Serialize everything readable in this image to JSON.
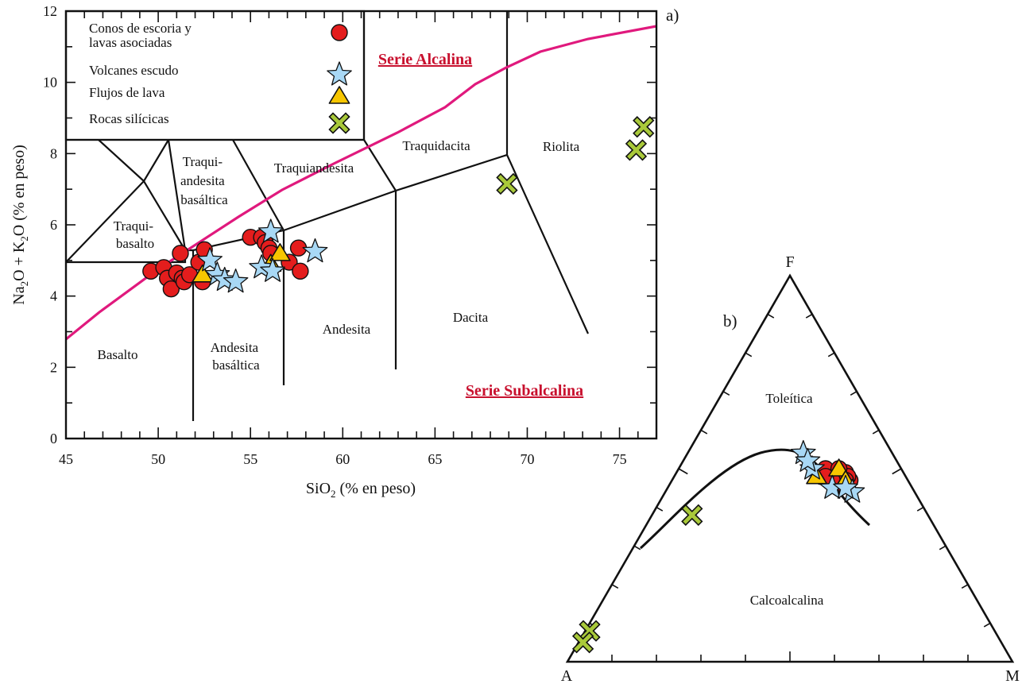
{
  "colors": {
    "cones": "#e41d1d",
    "shield": "#a8d8f5",
    "flows": "#f7c600",
    "silicic": "#a9c93a",
    "alkaline_divider": "#e0197d",
    "series_labels": "#c8102e"
  },
  "tas": {
    "panel_label": "a)",
    "x_title_parts": [
      "SiO",
      "2",
      " (% en peso)"
    ],
    "y_title_parts": [
      "Na",
      "2",
      "O + K",
      "2",
      "O (% en peso)"
    ],
    "x_ticks": [
      "45",
      "50",
      "55",
      "60",
      "65",
      "70",
      "75"
    ],
    "y_ticks": [
      "0",
      "2",
      "4",
      "6",
      "8",
      "10",
      "12"
    ],
    "series_alcalina": "Serie Alcalina",
    "series_subalcalina": "Serie Subalcalina",
    "fields": {
      "basalto": "Basalto",
      "andesita_basaltica": [
        "Andesita",
        "basáltica"
      ],
      "andesita": "Andesita",
      "dacita": "Dacita",
      "riolita": "Riolita",
      "traquibasalto": [
        "Traqui-",
        "basalto"
      ],
      "traquiandesita_basaltica": [
        "Traqui-",
        "andesita",
        "basáltica"
      ],
      "traquiandesita": "Traquiandesita",
      "traquidacita": "Traquidacita"
    },
    "legend": [
      {
        "label_lines": [
          "Conos de escoria  y",
          "lavas asociadas"
        ],
        "marker": "circle"
      },
      {
        "label_lines": [
          "Volcanes escudo"
        ],
        "marker": "star"
      },
      {
        "label_lines": [
          "Flujos de lava"
        ],
        "marker": "triangle"
      },
      {
        "label_lines": [
          "Rocas silícicas"
        ],
        "marker": "cross"
      }
    ]
  },
  "afm": {
    "panel_label": "b)",
    "vertex_f": "F",
    "vertex_a": "A",
    "vertex_m": "M",
    "field_toleitica": "Toleítica",
    "field_calcoalcalina": "Calcoalcalina"
  },
  "chart_data": [
    {
      "type": "scatter",
      "title": "",
      "xlabel": "SiO2 (% en peso)",
      "ylabel": "Na2O + K2O (% en peso)",
      "xlim": [
        45,
        77
      ],
      "ylim": [
        0,
        12
      ],
      "grid": false,
      "legend_placement": "top-left",
      "series": [
        {
          "name": "Conos de escoria  y lavas asociadas",
          "marker": "circle",
          "points": [
            [
              49.6,
              4.7
            ],
            [
              50.3,
              4.8
            ],
            [
              50.5,
              4.5
            ],
            [
              50.7,
              4.2
            ],
            [
              51.0,
              4.65
            ],
            [
              51.2,
              5.2
            ],
            [
              51.3,
              4.5
            ],
            [
              51.4,
              4.4
            ],
            [
              51.7,
              4.6
            ],
            [
              52.2,
              4.95
            ],
            [
              52.4,
              4.4
            ],
            [
              52.5,
              5.3
            ],
            [
              55.0,
              5.65
            ],
            [
              55.6,
              5.65
            ],
            [
              55.8,
              5.5
            ],
            [
              56.0,
              5.35
            ],
            [
              56.1,
              5.2
            ],
            [
              57.1,
              4.95
            ],
            [
              57.6,
              5.35
            ],
            [
              57.7,
              4.7
            ]
          ]
        },
        {
          "name": "Volcanes escudo",
          "marker": "star",
          "points": [
            [
              52.8,
              5.0
            ],
            [
              53.2,
              4.6
            ],
            [
              53.6,
              4.45
            ],
            [
              54.2,
              4.4
            ],
            [
              55.6,
              4.8
            ],
            [
              56.1,
              5.8
            ],
            [
              56.2,
              4.7
            ],
            [
              58.5,
              5.25
            ]
          ]
        },
        {
          "name": "Flujos de lava",
          "marker": "triangle",
          "points": [
            [
              52.4,
              4.6
            ],
            [
              56.1,
              4.9
            ],
            [
              56.6,
              5.2
            ]
          ]
        },
        {
          "name": "Rocas silícicas",
          "marker": "cross",
          "points": [
            [
              68.9,
              7.15
            ],
            [
              75.9,
              8.1
            ],
            [
              76.3,
              8.75
            ]
          ]
        }
      ]
    },
    {
      "type": "scatter",
      "title": "",
      "ternary": [
        "F",
        "A",
        "M"
      ],
      "fields": [
        "Toleítica",
        "Calcoalcalina"
      ],
      "series": [
        {
          "name": "Conos de escoria  y lavas asociadas",
          "marker": "circle",
          "points_fam": [
            [
              0.48,
              0.19,
              0.33
            ],
            [
              0.49,
              0.17,
              0.34
            ],
            [
              0.5,
              0.17,
              0.33
            ],
            [
              0.48,
              0.16,
              0.36
            ],
            [
              0.47,
              0.13,
              0.4
            ],
            [
              0.49,
              0.13,
              0.38
            ],
            [
              0.48,
              0.13,
              0.39
            ],
            [
              0.46,
              0.15,
              0.39
            ],
            [
              0.5,
              0.14,
              0.36
            ],
            [
              0.47,
              0.14,
              0.39
            ],
            [
              0.47,
              0.17,
              0.36
            ],
            [
              0.48,
              0.18,
              0.34
            ]
          ]
        },
        {
          "name": "Volcanes escudo",
          "marker": "star",
          "points_fam": [
            [
              0.5,
              0.2,
              0.3
            ],
            [
              0.54,
              0.2,
              0.26
            ],
            [
              0.45,
              0.18,
              0.37
            ],
            [
              0.44,
              0.14,
              0.42
            ],
            [
              0.45,
              0.15,
              0.4
            ],
            [
              0.52,
              0.2,
              0.28
            ]
          ]
        },
        {
          "name": "Flujos de lava",
          "marker": "triangle",
          "points_fam": [
            [
              0.48,
              0.2,
              0.32
            ],
            [
              0.5,
              0.14,
              0.36
            ],
            [
              0.47,
              0.14,
              0.39
            ]
          ]
        },
        {
          "name": "Rocas silícicas",
          "marker": "cross",
          "points_fam": [
            [
              0.38,
              0.53,
              0.09
            ],
            [
              0.08,
              0.91,
              0.01
            ],
            [
              0.05,
              0.94,
              0.01
            ]
          ]
        }
      ]
    }
  ]
}
